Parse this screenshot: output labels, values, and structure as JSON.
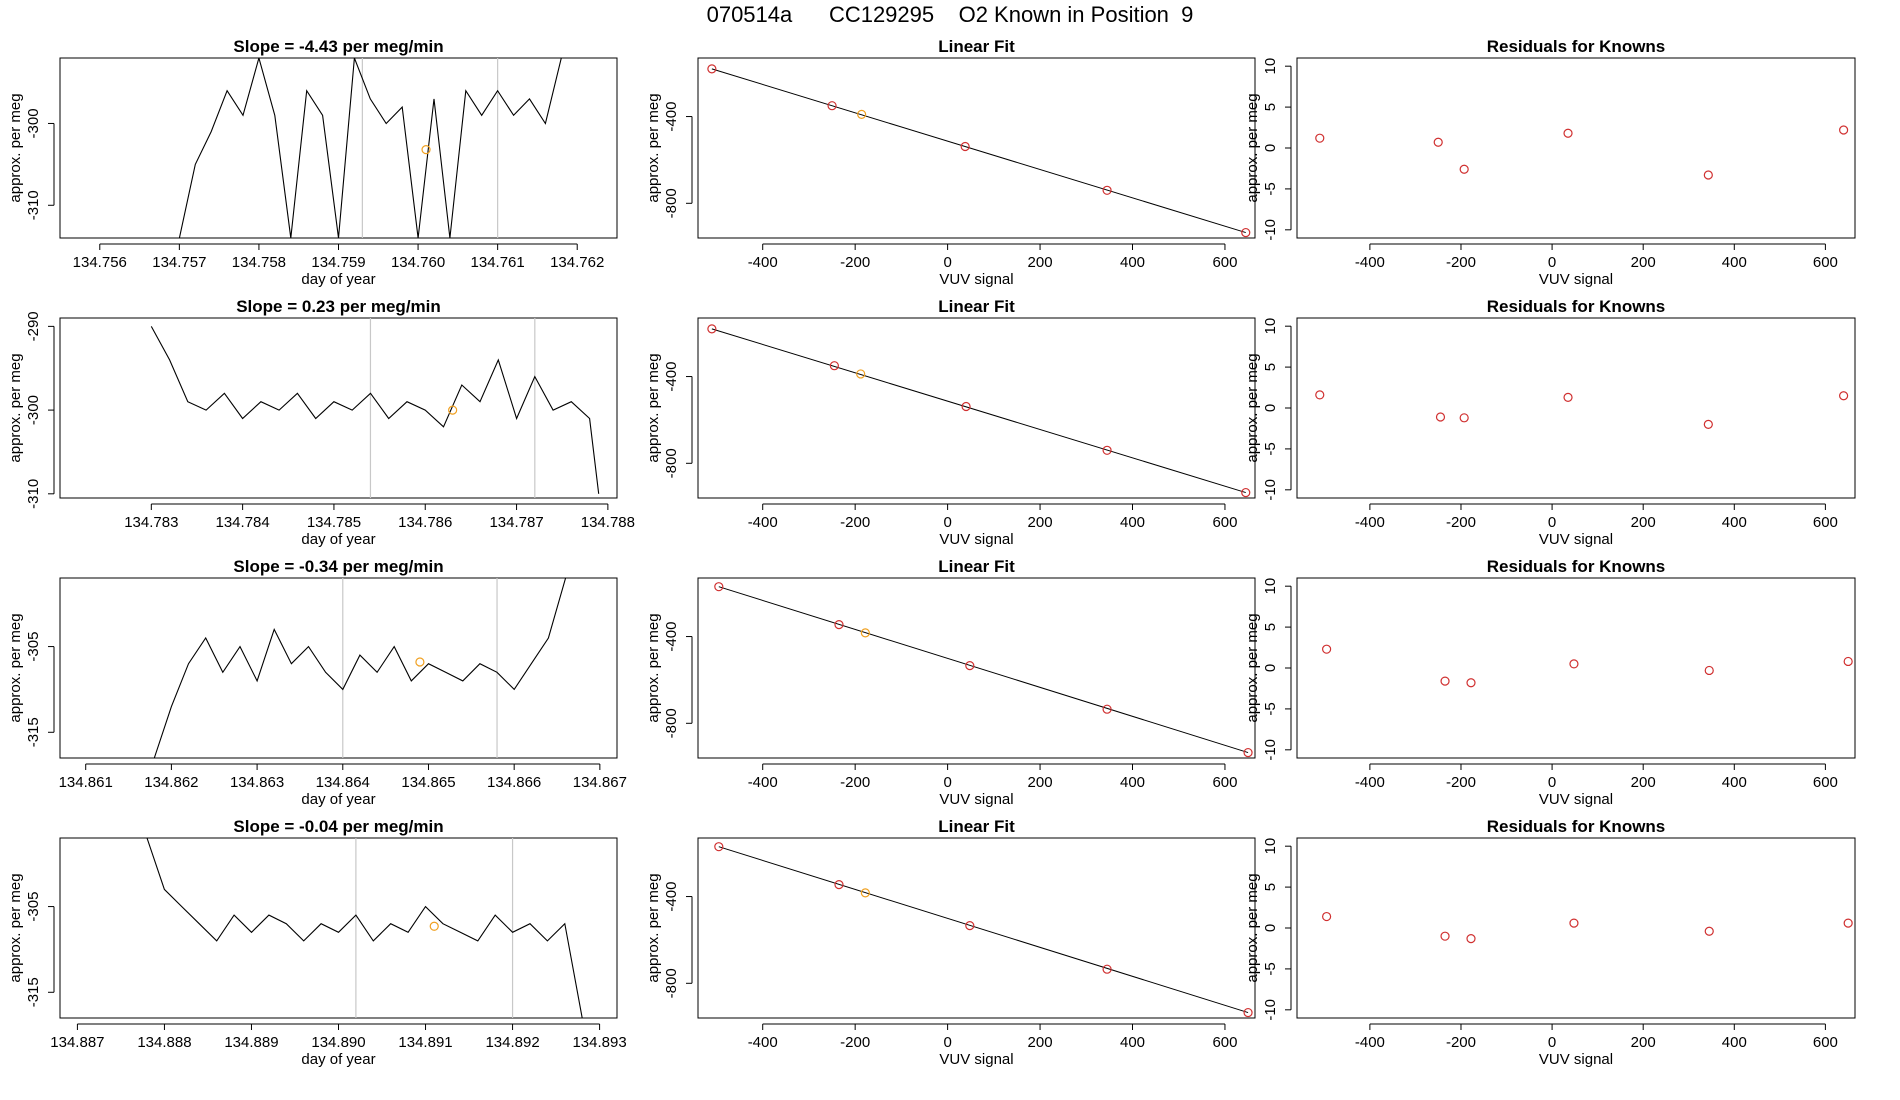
{
  "title": {
    "run_id": "070514a",
    "cylinder": "CC129295",
    "description": "O2 Known in Position  9"
  },
  "chart_data": [
    {
      "type": "line",
      "panel": "timeseries",
      "title": "Slope =  -4.43  per meg/min",
      "xlabel": "day of year",
      "ylabel": "approx. per meg",
      "xlim": [
        134.7555,
        134.7625
      ],
      "ylim": [
        -314,
        -292
      ],
      "xticks": [
        "134.756",
        "134.757",
        "134.758",
        "134.759",
        "134.760",
        "134.761",
        "134.762"
      ],
      "yticks": [
        "-300",
        "-310"
      ],
      "vlines": [
        134.7593,
        134.761
      ],
      "marker": {
        "x": 134.7601,
        "y": -303.2
      },
      "series": [
        {
          "name": "signal",
          "x": [
            134.757,
            134.7572,
            134.7574,
            134.7576,
            134.7578,
            134.758,
            134.7582,
            134.7584,
            134.7586,
            134.7588,
            134.759,
            134.7592,
            134.7594,
            134.7596,
            134.7598,
            134.76,
            134.7602,
            134.7604,
            134.7606,
            134.7608,
            134.761,
            134.7612,
            134.7614,
            134.7616,
            134.7618
          ],
          "y": [
            -314,
            -305,
            -301,
            -296,
            -299,
            -292,
            -299,
            -314,
            -296,
            -299,
            -314,
            -292,
            -297,
            -300,
            -298,
            -314,
            -297,
            -314,
            -296,
            -299,
            -296,
            -299,
            -297,
            -300,
            -292
          ]
        }
      ]
    },
    {
      "type": "scatter",
      "panel": "linear-fit",
      "title": "Linear Fit",
      "xlabel": "VUV signal",
      "ylabel": "approx. per meg",
      "xlim": [
        -540,
        665
      ],
      "ylim": [
        -960,
        -130
      ],
      "xticks": [
        "-400",
        "-200",
        "0",
        "200",
        "400",
        "600"
      ],
      "yticks": [
        "-400",
        "-800"
      ],
      "line": [
        [
          -510,
          -180
        ],
        [
          645,
          -935
        ]
      ],
      "points": {
        "x": [
          -510,
          -250,
          -186,
          38,
          345,
          645
        ],
        "y": [
          -180,
          -350,
          -390,
          -538,
          -740,
          -935
        ]
      },
      "highlight_index": 2
    },
    {
      "type": "scatter",
      "panel": "residuals",
      "title": "Residuals for Knowns",
      "xlabel": "VUV signal",
      "ylabel": "approx. per meg",
      "xlim": [
        -560,
        665
      ],
      "ylim": [
        -11,
        11
      ],
      "xticks": [
        "-400",
        "-200",
        "0",
        "200",
        "400",
        "600"
      ],
      "yticks": [
        "10",
        "5",
        "0",
        "-5",
        "-10"
      ],
      "points": {
        "x": [
          -510,
          -250,
          -193,
          35,
          343,
          640
        ],
        "y": [
          1.2,
          0.7,
          -2.6,
          1.8,
          -3.3,
          2.2
        ]
      }
    },
    {
      "type": "line",
      "panel": "timeseries",
      "title": "Slope =  0.23  per meg/min",
      "xlabel": "day of year",
      "ylabel": "approx. per meg",
      "xlim": [
        134.782,
        134.7881
      ],
      "ylim": [
        -310.5,
        -289
      ],
      "xticks": [
        "134.783",
        "134.784",
        "134.785",
        "134.786",
        "134.787",
        "134.788"
      ],
      "yticks": [
        "-290",
        "-300",
        "-310"
      ],
      "vlines": [
        134.7854,
        134.7872
      ],
      "marker": {
        "x": 134.7863,
        "y": -300
      },
      "series": [
        {
          "name": "signal",
          "x": [
            134.783,
            134.7832,
            134.7834,
            134.7836,
            134.7838,
            134.784,
            134.7842,
            134.7844,
            134.7846,
            134.7848,
            134.785,
            134.7852,
            134.7854,
            134.7856,
            134.7858,
            134.786,
            134.7862,
            134.7864,
            134.7866,
            134.7868,
            134.787,
            134.7872,
            134.7874,
            134.7876,
            134.7878,
            134.7879
          ],
          "y": [
            -290,
            -294,
            -299,
            -300,
            -298,
            -301,
            -299,
            -300,
            -298,
            -301,
            -299,
            -300,
            -298,
            -301,
            -299,
            -300,
            -302,
            -297,
            -299,
            -294,
            -301,
            -296,
            -300,
            -299,
            -301,
            -310
          ]
        }
      ]
    },
    {
      "type": "scatter",
      "panel": "linear-fit",
      "title": "Linear Fit",
      "xlabel": "VUV signal",
      "ylabel": "approx. per meg",
      "xlim": [
        -540,
        665
      ],
      "ylim": [
        -960,
        -130
      ],
      "xticks": [
        "-400",
        "-200",
        "0",
        "200",
        "400",
        "600"
      ],
      "yticks": [
        "-400",
        "-800"
      ],
      "line": [
        [
          -510,
          -180
        ],
        [
          645,
          -935
        ]
      ],
      "points": {
        "x": [
          -510,
          -245,
          -188,
          40,
          345,
          645
        ],
        "y": [
          -180,
          -350,
          -388,
          -538,
          -740,
          -935
        ]
      },
      "highlight_index": 2
    },
    {
      "type": "scatter",
      "panel": "residuals",
      "title": "Residuals for Knowns",
      "xlabel": "VUV signal",
      "ylabel": "approx. per meg",
      "xlim": [
        -560,
        665
      ],
      "ylim": [
        -11,
        11
      ],
      "xticks": [
        "-400",
        "-200",
        "0",
        "200",
        "400",
        "600"
      ],
      "yticks": [
        "10",
        "5",
        "0",
        "-5",
        "-10"
      ],
      "points": {
        "x": [
          -510,
          -245,
          -193,
          35,
          343,
          640
        ],
        "y": [
          1.6,
          -1.1,
          -1.2,
          1.3,
          -2.0,
          1.5
        ]
      }
    },
    {
      "type": "line",
      "panel": "timeseries",
      "title": "Slope =  -0.34  per meg/min",
      "xlabel": "day of year",
      "ylabel": "approx. per meg",
      "xlim": [
        134.8607,
        134.8672
      ],
      "ylim": [
        -318,
        -297
      ],
      "xticks": [
        "134.861",
        "134.862",
        "134.863",
        "134.864",
        "134.865",
        "134.866",
        "134.867"
      ],
      "yticks": [
        "-305",
        "-315"
      ],
      "vlines": [
        134.864,
        134.8658
      ],
      "marker": {
        "x": 134.8649,
        "y": -306.8
      },
      "series": [
        {
          "name": "signal",
          "x": [
            134.8618,
            134.862,
            134.8622,
            134.8624,
            134.8626,
            134.8628,
            134.863,
            134.8632,
            134.8634,
            134.8636,
            134.8638,
            134.864,
            134.8642,
            134.8644,
            134.8646,
            134.8648,
            134.865,
            134.8652,
            134.8654,
            134.8656,
            134.8658,
            134.866,
            134.8662,
            134.8664,
            134.8666
          ],
          "y": [
            -318,
            -312,
            -307,
            -304,
            -308,
            -305,
            -309,
            -303,
            -307,
            -305,
            -308,
            -310,
            -306,
            -308,
            -305,
            -309,
            -307,
            -308,
            -309,
            -307,
            -308,
            -310,
            -307,
            -304,
            -297
          ]
        }
      ]
    },
    {
      "type": "scatter",
      "panel": "linear-fit",
      "title": "Linear Fit",
      "xlabel": "VUV signal",
      "ylabel": "approx. per meg",
      "xlim": [
        -540,
        665
      ],
      "ylim": [
        -960,
        -130
      ],
      "xticks": [
        "-400",
        "-200",
        "0",
        "200",
        "400",
        "600"
      ],
      "yticks": [
        "-400",
        "-800"
      ],
      "line": [
        [
          -495,
          -170
        ],
        [
          650,
          -935
        ]
      ],
      "points": {
        "x": [
          -495,
          -235,
          -178,
          48,
          345,
          650
        ],
        "y": [
          -170,
          -345,
          -383,
          -534,
          -735,
          -935
        ]
      },
      "highlight_index": 2
    },
    {
      "type": "scatter",
      "panel": "residuals",
      "title": "Residuals for Knowns",
      "xlabel": "VUV signal",
      "ylabel": "approx. per meg",
      "xlim": [
        -560,
        665
      ],
      "ylim": [
        -11,
        11
      ],
      "xticks": [
        "-400",
        "-200",
        "0",
        "200",
        "400",
        "600"
      ],
      "yticks": [
        "10",
        "5",
        "0",
        "-5",
        "-10"
      ],
      "points": {
        "x": [
          -495,
          -235,
          -178,
          48,
          345,
          650
        ],
        "y": [
          2.3,
          -1.6,
          -1.8,
          0.5,
          -0.3,
          0.8
        ]
      }
    },
    {
      "type": "line",
      "panel": "timeseries",
      "title": "Slope =  -0.04  per meg/min",
      "xlabel": "day of year",
      "ylabel": "approx. per meg",
      "xlim": [
        134.8868,
        134.8932
      ],
      "ylim": [
        -318,
        -297
      ],
      "xticks": [
        "134.887",
        "134.888",
        "134.889",
        "134.890",
        "134.891",
        "134.892",
        "134.893"
      ],
      "yticks": [
        "-305",
        "-315"
      ],
      "vlines": [
        134.8902,
        134.892
      ],
      "marker": {
        "x": 134.8911,
        "y": -307.3
      },
      "series": [
        {
          "name": "signal",
          "x": [
            134.8878,
            134.888,
            134.8882,
            134.8884,
            134.8886,
            134.8888,
            134.889,
            134.8892,
            134.8894,
            134.8896,
            134.8898,
            134.89,
            134.8902,
            134.8904,
            134.8906,
            134.8908,
            134.891,
            134.8912,
            134.8914,
            134.8916,
            134.8918,
            134.892,
            134.8922,
            134.8924,
            134.8926,
            134.8928
          ],
          "y": [
            -297,
            -303,
            -305,
            -307,
            -309,
            -306,
            -308,
            -306,
            -307,
            -309,
            -307,
            -308,
            -306,
            -309,
            -307,
            -308,
            -305,
            -307,
            -308,
            -309,
            -306,
            -308,
            -307,
            -309,
            -307,
            -318
          ]
        }
      ]
    },
    {
      "type": "scatter",
      "panel": "linear-fit",
      "title": "Linear Fit",
      "xlabel": "VUV signal",
      "ylabel": "approx. per meg",
      "xlim": [
        -540,
        665
      ],
      "ylim": [
        -960,
        -130
      ],
      "xticks": [
        "-400",
        "-200",
        "0",
        "200",
        "400",
        "600"
      ],
      "yticks": [
        "-400",
        "-800"
      ],
      "line": [
        [
          -495,
          -170
        ],
        [
          650,
          -935
        ]
      ],
      "points": {
        "x": [
          -495,
          -235,
          -178,
          48,
          345,
          650
        ],
        "y": [
          -170,
          -345,
          -383,
          -534,
          -735,
          -935
        ]
      },
      "highlight_index": 2
    },
    {
      "type": "scatter",
      "panel": "residuals",
      "title": "Residuals for Knowns",
      "xlabel": "VUV signal",
      "ylabel": "approx. per meg",
      "xlim": [
        -560,
        665
      ],
      "ylim": [
        -11,
        11
      ],
      "xticks": [
        "-400",
        "-200",
        "0",
        "200",
        "400",
        "600"
      ],
      "yticks": [
        "10",
        "5",
        "0",
        "-5",
        "-10"
      ],
      "points": {
        "x": [
          -495,
          -235,
          -178,
          48,
          345,
          650
        ],
        "y": [
          1.4,
          -1.0,
          -1.3,
          0.6,
          -0.4,
          0.6
        ]
      }
    }
  ]
}
